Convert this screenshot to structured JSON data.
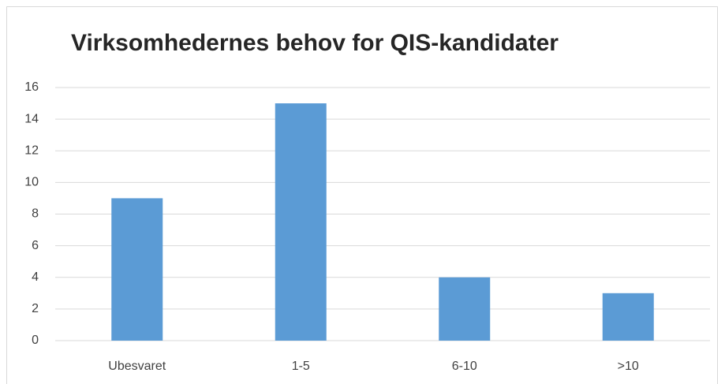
{
  "chart_data": {
    "type": "bar",
    "title": "Virksomhedernes behov for QIS-kandidater",
    "categories": [
      "Ubesvaret",
      "1-5",
      "6-10",
      ">10"
    ],
    "values": [
      9,
      15,
      4,
      3
    ],
    "color": "#5b9bd5",
    "ylim": [
      0,
      16
    ],
    "yticks": [
      0,
      2,
      4,
      6,
      8,
      10,
      12,
      14,
      16
    ],
    "grid": true
  }
}
